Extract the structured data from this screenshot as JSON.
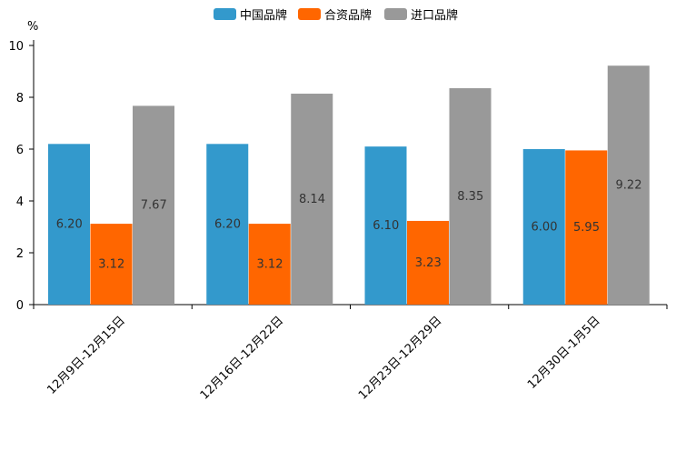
{
  "chart_data": {
    "type": "bar",
    "title": "",
    "xlabel": "",
    "ylabel": "",
    "unit_label": "%",
    "ylim": [
      0,
      10
    ],
    "yticks": [
      0,
      2,
      4,
      6,
      8,
      10
    ],
    "grid": false,
    "legend_position": "top",
    "categories": [
      "12月9日-12月15日",
      "12月16日-12月22日",
      "12月23日-12月29日",
      "12月30日-1月5日"
    ],
    "series": [
      {
        "name": "中国品牌",
        "color": "#3399cc",
        "values": [
          6.2,
          6.2,
          6.1,
          6.0
        ],
        "labels": [
          "6.20",
          "6.20",
          "6.10",
          "6.00"
        ]
      },
      {
        "name": "合资品牌",
        "color": "#ff6600",
        "values": [
          3.12,
          3.12,
          3.23,
          5.95
        ],
        "labels": [
          "3.12",
          "3.12",
          "3.23",
          "5.95"
        ]
      },
      {
        "name": "进口品牌",
        "color": "#999999",
        "values": [
          7.67,
          8.14,
          8.35,
          9.22
        ],
        "labels": [
          "7.67",
          "8.14",
          "8.35",
          "9.22"
        ]
      }
    ]
  }
}
